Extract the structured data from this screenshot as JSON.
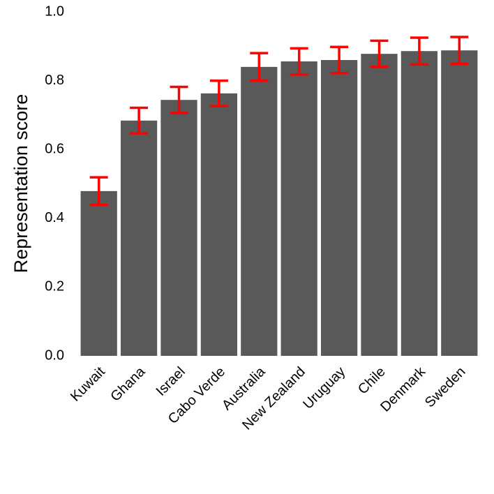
{
  "chart_data": {
    "type": "bar",
    "y_label": "Representation score",
    "categories": [
      "Kuwait",
      "Ghana",
      "Israel",
      "Cabo Verde",
      "Australia",
      "New Zealand",
      "Uruguay",
      "Chile",
      "Denmark",
      "Sweden"
    ],
    "values": [
      0.479,
      0.684,
      0.744,
      0.763,
      0.84,
      0.856,
      0.86,
      0.878,
      0.886,
      0.888
    ],
    "errors": [
      0.04,
      0.037,
      0.038,
      0.037,
      0.04,
      0.038,
      0.038,
      0.038,
      0.039,
      0.039
    ],
    "color": "#595959",
    "error_color": "#ff0000",
    "ylim": [
      0,
      1
    ],
    "yticks": [
      {
        "value": 0,
        "label": "0.0"
      },
      0.2,
      0.4,
      0.6,
      0.8,
      {
        "value": 1,
        "label": "1.0"
      }
    ],
    "grid": false
  }
}
